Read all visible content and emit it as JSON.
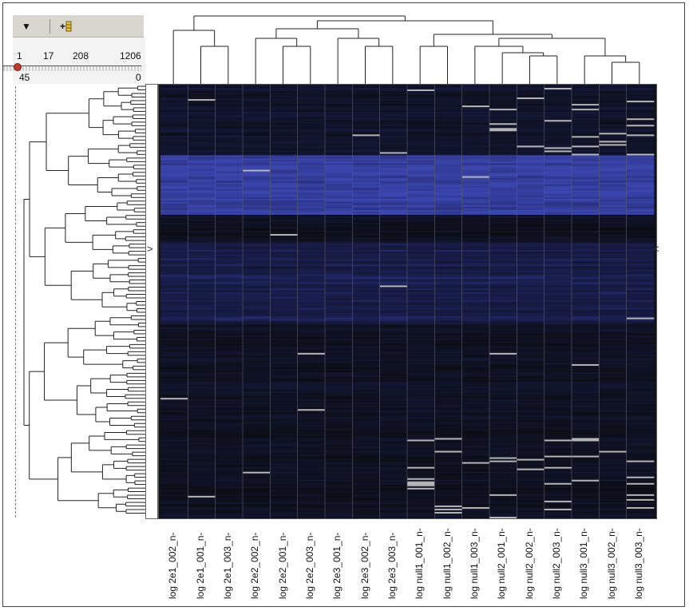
{
  "toolbar": {
    "dropdown_icon": "chevron-down-icon",
    "dropdown_glyph": "▼",
    "add_cluster_icon": "add-cluster-icon",
    "add_cluster_glyph": "+"
  },
  "slider": {
    "scale_labels": [
      "1",
      "17",
      "208",
      "1206"
    ],
    "range_low": "45",
    "range_high": "0"
  },
  "chart_data": {
    "type": "heatmap",
    "columns": [
      "log 2e1_002_n-",
      "log 2e1_001_n-",
      "log 2e1_003_n-",
      "log 2e2_002_n-",
      "log 2e2_001_n-",
      "log 2e2_003_n-",
      "log 2e3_001_n-",
      "log 2e3_002_n-",
      "log 2e3_003_n-",
      "log null1_001_n-",
      "log null1_002_n-",
      "log null1_003_n-",
      "log null2_001_n-",
      "log null2_002_n-",
      "log null2_003_n-",
      "log null3_001_n-",
      "log null3_002_n-",
      "log null3_003_n-"
    ],
    "colors": {
      "low": "#0b0d12",
      "mid": "#1a1f52",
      "high": "#3b46b0",
      "missing": "#b5b5b5"
    },
    "grid": false,
    "column_dendrogram": true,
    "row_dendrogram": true
  }
}
